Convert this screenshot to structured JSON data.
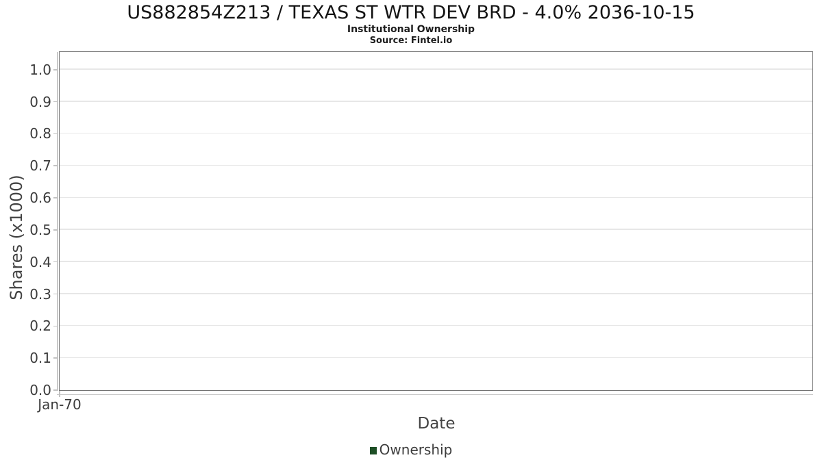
{
  "chart_data": {
    "type": "line",
    "title": "US882854Z213 / TEXAS ST WTR DEV BRD - 4.0% 2036-10-15",
    "subtitle": "Institutional Ownership",
    "source_note": "Source: Fintel.io",
    "xlabel": "Date",
    "ylabel": "Shares (x1000)",
    "x_tick_labels": [
      "Jan-70"
    ],
    "y_tick_labels": [
      "0.0",
      "0.1",
      "0.2",
      "0.3",
      "0.4",
      "0.5",
      "0.6",
      "0.7",
      "0.8",
      "0.9",
      "1.0"
    ],
    "ylim": [
      0.0,
      1.055
    ],
    "grid": true,
    "legend_position": "bottom-center",
    "series": [
      {
        "name": "Ownership",
        "color": "#1e4f26",
        "values": []
      }
    ]
  },
  "colors": {
    "series_green": "#1e4f26",
    "plot_border": "#737373",
    "gridline": "#e7e7e7",
    "background": "#ffffff"
  }
}
